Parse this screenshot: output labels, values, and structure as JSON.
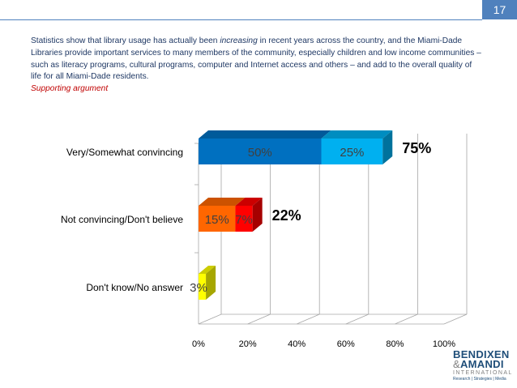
{
  "slide": {
    "page_number": "17",
    "intro_before": "Statistics show that library usage has actually been ",
    "intro_emphasis": "increasing",
    "intro_after": " in recent years across the country, and the Miami-Dade Libraries provide important services to many members of the community, especially children and low income communities – such as literacy programs, cultural programs, computer and Internet access and others – and add to the overall quality of life for all Miami-Dade residents.",
    "support_label": "Supporting argument"
  },
  "chart_data": {
    "type": "bar",
    "orientation": "horizontal",
    "stacked": true,
    "style": "3d",
    "categories": [
      "Very/Somewhat convincing",
      "Not convincing/Don't believe",
      "Don't know/No answer"
    ],
    "segments": [
      [
        {
          "value": 50,
          "label": "50%",
          "color": "#0070c0"
        },
        {
          "value": 25,
          "label": "25%",
          "color": "#00b0f0"
        }
      ],
      [
        {
          "value": 15,
          "label": "15%",
          "color": "#ff6600"
        },
        {
          "value": 7,
          "label": "7%",
          "color": "#ff0000"
        }
      ],
      [
        {
          "value": 3,
          "label": "3%",
          "color": "#ffff00"
        }
      ]
    ],
    "totals": [
      "75%",
      "22%",
      ""
    ],
    "xlim": [
      0,
      100
    ],
    "xticks": [
      "0%",
      "20%",
      "40%",
      "60%",
      "80%",
      "100%"
    ],
    "tick_values": [
      0,
      20,
      40,
      60,
      80,
      100
    ],
    "grid": true
  },
  "logo": {
    "line1": "BENDIXEN",
    "amp": "&",
    "line2": "AMANDI",
    "sub": "INTERNATIONAL",
    "tag": "Research | Strategies | Media"
  }
}
